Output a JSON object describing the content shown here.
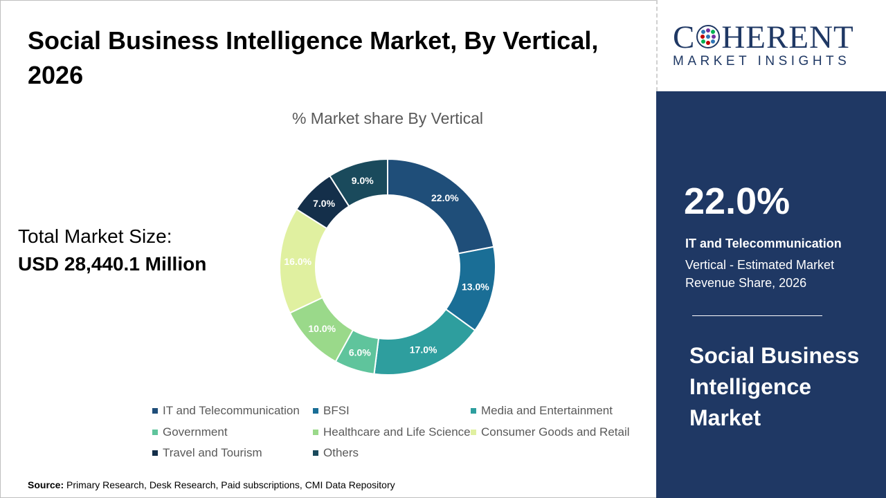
{
  "header": {
    "title": "Social Business Intelligence Market, By Vertical, 2026"
  },
  "market_size": {
    "label": "Total Market Size:",
    "value": "USD 28,440.1 Million"
  },
  "source": {
    "label": "Source:",
    "text": "Primary Research, Desk Research, Paid subscriptions, CMI Data Repository"
  },
  "logo": {
    "line1_pre": "C",
    "line1_post": "HERENT",
    "line2": "MARKET INSIGHTS"
  },
  "panel": {
    "big_value": "22.0%",
    "category": "IT and Telecommunication",
    "description": "Vertical - Estimated Market Revenue Share, 2026",
    "title": "Social Business Intelligence Market"
  },
  "chart_data": {
    "type": "pie",
    "subtype": "donut",
    "title": "% Market share By Vertical",
    "legend_position": "bottom",
    "categories": [
      "IT and Telecommunication",
      "BFSI",
      "Media and Entertainment",
      "Government",
      "Healthcare and Life Science",
      "Consumer Goods and Retail",
      "Travel and Tourism",
      "Others"
    ],
    "values": [
      22.0,
      13.0,
      17.0,
      6.0,
      10.0,
      16.0,
      7.0,
      9.0
    ],
    "data_labels": [
      "22.0%",
      "13.0%",
      "17.0%",
      "6.0%",
      "10.0%",
      "16.0%",
      "7.0%",
      "9.0%"
    ],
    "colors": [
      "#1f4e79",
      "#1a6e96",
      "#2e9e9e",
      "#5fc49c",
      "#9ad98a",
      "#e0f0a0",
      "#142f4a",
      "#1a4a5c"
    ],
    "label_colors": [
      "#ffffff",
      "#ffffff",
      "#ffffff",
      "#ffffff",
      "#ffffff",
      "#ffffff",
      "#ffffff",
      "#ffffff"
    ]
  }
}
